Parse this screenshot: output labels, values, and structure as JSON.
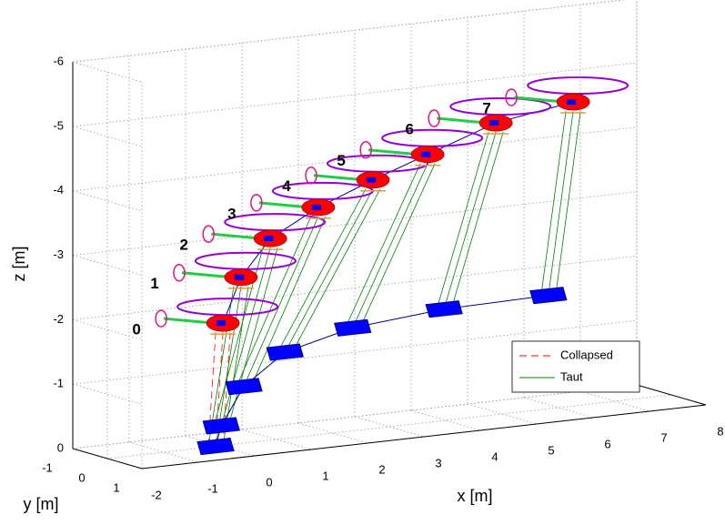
{
  "chart_data": {
    "type": "scatter3d",
    "xlabel": "x [m]",
    "ylabel": "y [m]",
    "zlabel": "z [m]",
    "xlim": [
      -2,
      8
    ],
    "ylim": [
      -1,
      1
    ],
    "zlim": [
      0,
      -6
    ],
    "xticks": [
      -2,
      -1,
      0,
      1,
      2,
      3,
      4,
      5,
      6,
      7,
      8
    ],
    "yticks": [
      -1,
      0,
      1
    ],
    "zticks": [
      0,
      -1,
      -2,
      -3,
      -4,
      -5,
      -6
    ],
    "grid": true,
    "helicopters": {
      "labels": [
        "0",
        "1",
        "2",
        "3",
        "4",
        "5",
        "6",
        "7"
      ],
      "x": [
        0.05,
        0.37,
        0.89,
        1.74,
        2.71,
        3.68,
        4.89,
        6.26
      ],
      "y": [
        0,
        0,
        0,
        0,
        0,
        0,
        0,
        0
      ],
      "z": [
        -1.9,
        -2.58,
        -3.13,
        -3.53,
        -3.86,
        -4.16,
        -4.53,
        -4.72
      ],
      "color": "#ff0000"
    },
    "loads": {
      "x": [
        -0.08,
        0.02,
        0.42,
        1.15,
        2.35,
        3.97,
        5.82
      ],
      "y": [
        0,
        0,
        0,
        0,
        0,
        0,
        0
      ],
      "z": [
        0,
        -0.31,
        -0.88,
        -1.34,
        -1.6,
        -1.73,
        -1.76
      ],
      "color": "#0000ff"
    },
    "series": [
      {
        "name": "Collapsed",
        "color": "#ff0000"
      },
      {
        "name": "Taut",
        "color": "#008000"
      }
    ]
  }
}
